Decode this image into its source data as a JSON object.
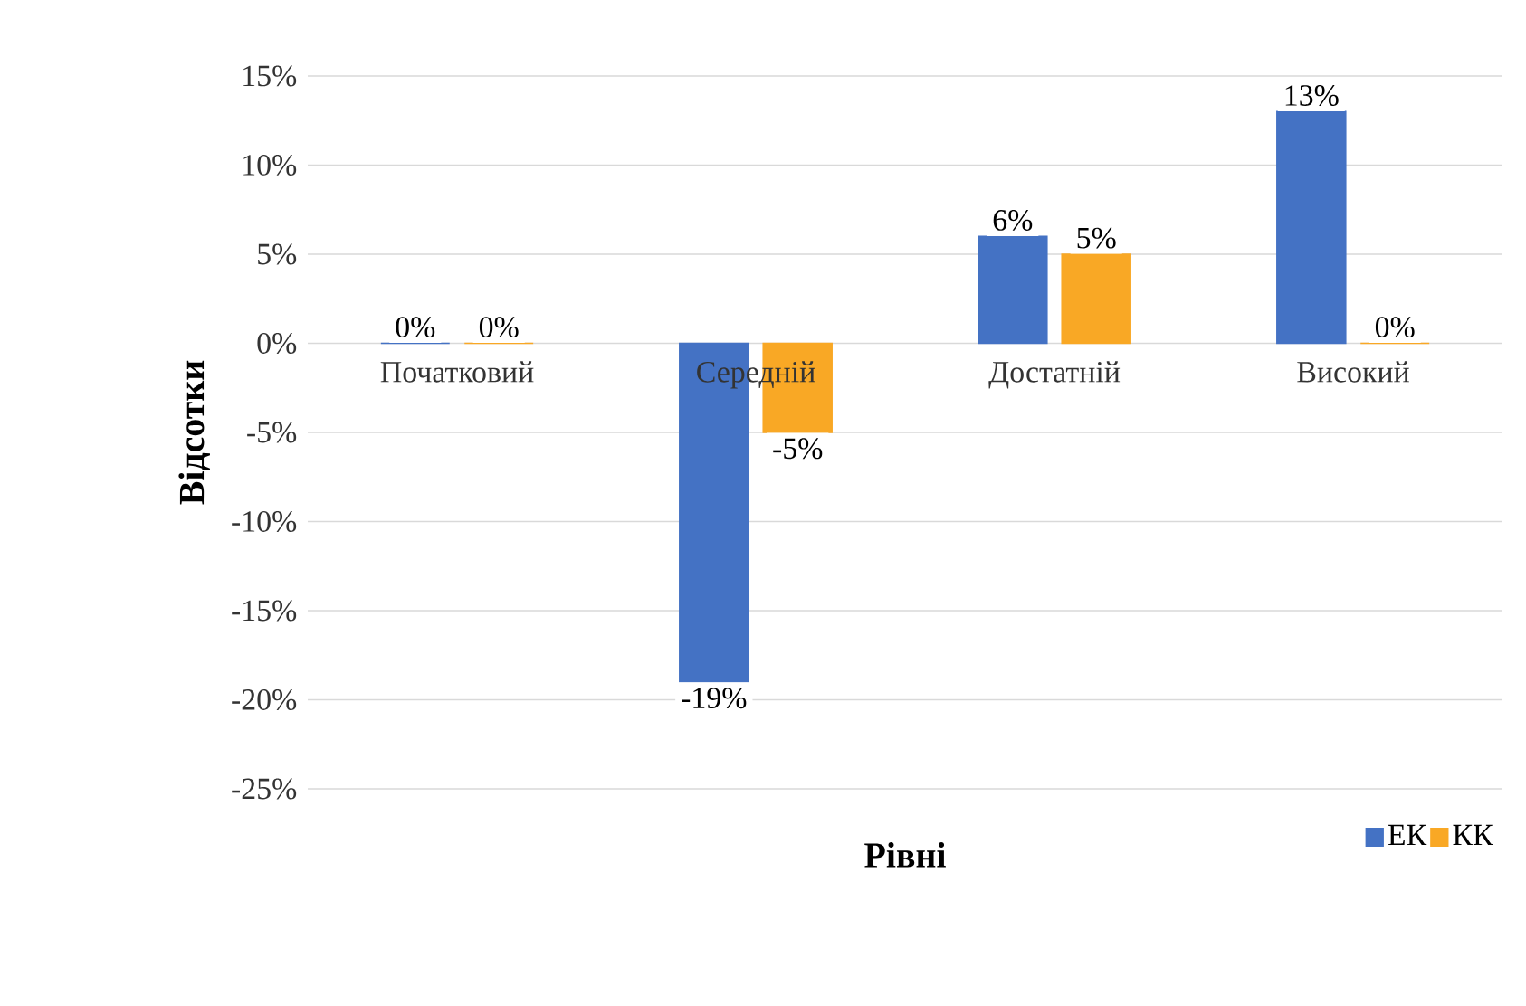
{
  "chart_data": {
    "type": "bar",
    "xlabel": "Рівні",
    "ylabel": "Відсотки",
    "categories": [
      "Початковий",
      "Середній",
      "Достатній",
      "Високий"
    ],
    "series": [
      {
        "name": "ЕК",
        "color": "#4472c4",
        "values": [
          0,
          -19,
          6,
          13
        ],
        "value_labels": [
          "0%",
          "-19%",
          "6%",
          "13%"
        ]
      },
      {
        "name": "КК",
        "color": "#f9a825",
        "values": [
          0,
          -5,
          5,
          0
        ],
        "value_labels": [
          "0%",
          "-5%",
          "5%",
          "0%"
        ]
      }
    ],
    "ylim": [
      -25,
      15
    ],
    "yticks": [
      {
        "value": -25,
        "label": "-25%"
      },
      {
        "value": -20,
        "label": "-20%"
      },
      {
        "value": -15,
        "label": "-15%"
      },
      {
        "value": -10,
        "label": "-10%"
      },
      {
        "value": -5,
        "label": "-5%"
      },
      {
        "value": 0,
        "label": "0%"
      },
      {
        "value": 5,
        "label": "5%"
      },
      {
        "value": 10,
        "label": "10%"
      },
      {
        "value": 15,
        "label": "15%"
      }
    ],
    "grid": "y",
    "legend": "bottom right"
  }
}
